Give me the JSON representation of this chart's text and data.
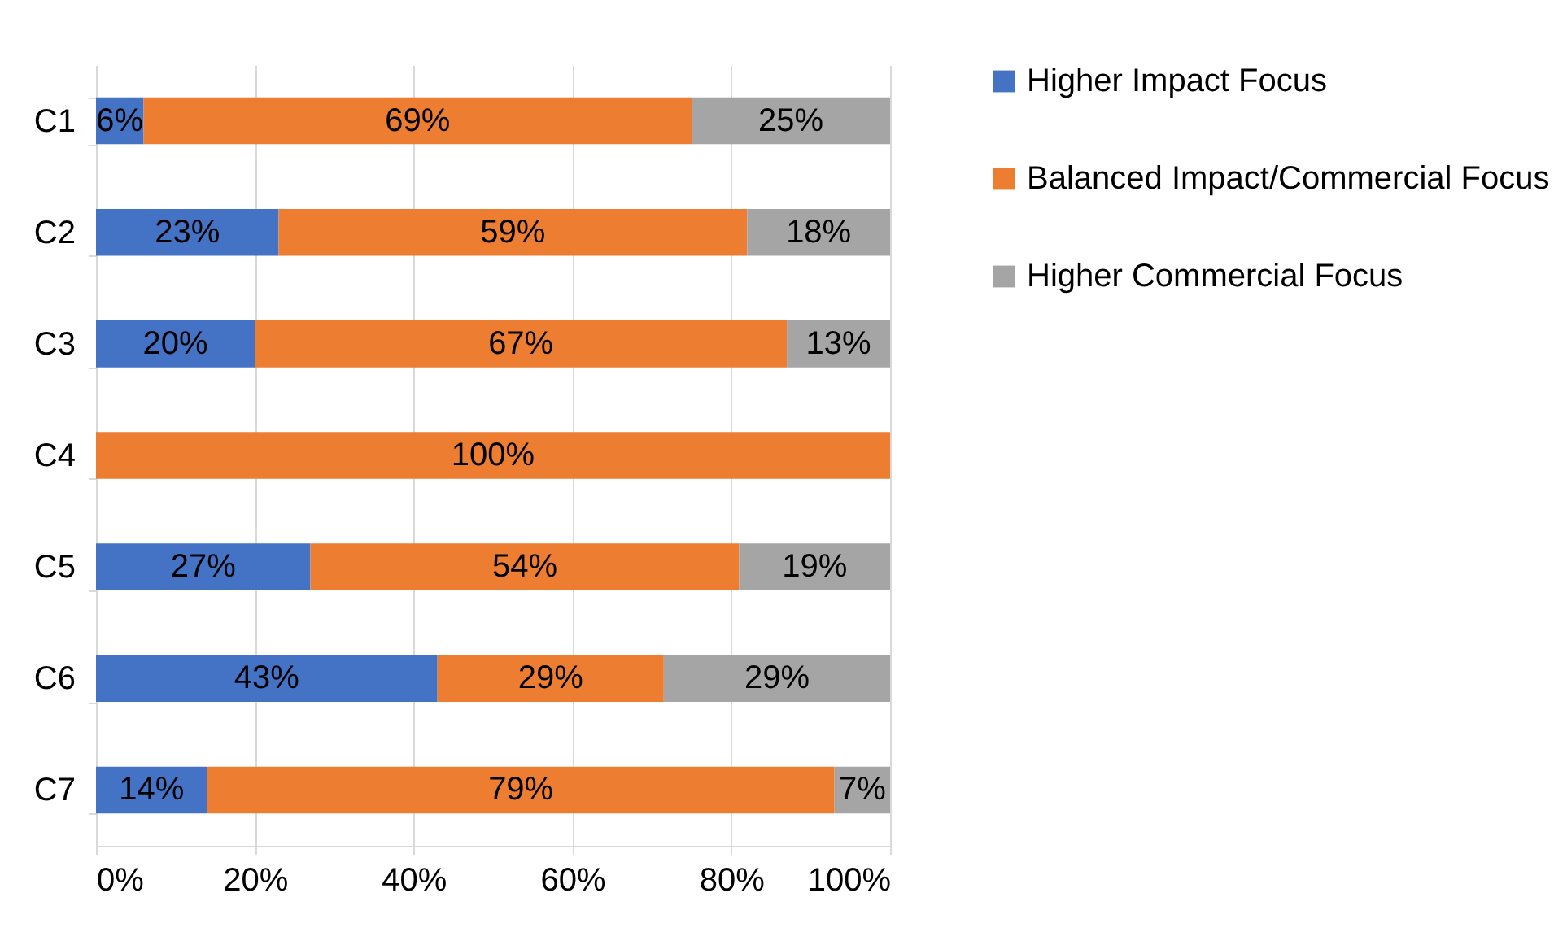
{
  "chart_data": {
    "type": "bar",
    "orientation": "horizontal",
    "stacked": true,
    "categories": [
      "C1",
      "C2",
      "C3",
      "C4",
      "C5",
      "C6",
      "C7"
    ],
    "series": [
      {
        "name": "Higher Impact Focus",
        "color": "#4472c4",
        "values": [
          6,
          23,
          20,
          0,
          27,
          43,
          14
        ],
        "value_labels": [
          "6%",
          "23%",
          "20%",
          null,
          "27%",
          "43%",
          "14%"
        ]
      },
      {
        "name": "Balanced Impact/Commercial Focus",
        "color": "#ed7d31",
        "values": [
          69,
          59,
          67,
          100,
          54,
          28.5,
          79
        ],
        "value_labels": [
          "69%",
          "59%",
          "67%",
          "100%",
          "54%",
          "29%",
          "79%"
        ]
      },
      {
        "name": "Higher Commercial Focus",
        "color": "#a5a5a5",
        "values": [
          25,
          18,
          13,
          0,
          19,
          28.5,
          7
        ],
        "value_labels": [
          "25%",
          "18%",
          "13%",
          null,
          "19%",
          "29%",
          "7%"
        ]
      }
    ],
    "xlim": [
      0,
      100
    ],
    "xticks": [
      {
        "value": 0,
        "label": "0%"
      },
      {
        "value": 20,
        "label": "20%"
      },
      {
        "value": 40,
        "label": "40%"
      },
      {
        "value": 60,
        "label": "60%"
      },
      {
        "value": 80,
        "label": "80%"
      },
      {
        "value": 100,
        "label": "100%"
      }
    ],
    "grid": "x",
    "legend": "right"
  }
}
